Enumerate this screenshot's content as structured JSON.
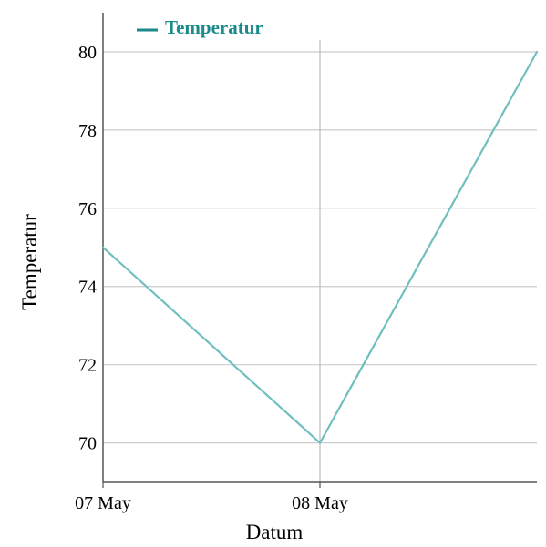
{
  "chart_data": {
    "type": "line",
    "title": "",
    "xlabel": "Datum",
    "ylabel": "Temperatur",
    "x": [
      "2024-05-07",
      "2024-05-08",
      "2024-05-09"
    ],
    "x_tick_labels": [
      "07 May",
      "08 May"
    ],
    "x_tick_values": [
      "2024-05-07",
      "2024-05-08"
    ],
    "y_ticks": [
      70,
      72,
      74,
      76,
      78,
      80
    ],
    "ylim": [
      68.99,
      81.0
    ],
    "grid": {
      "horizontal": true,
      "vertical": true
    },
    "legend_position": "top-left",
    "series": [
      {
        "name": "Temperatur",
        "values": [
          75,
          70,
          80
        ],
        "color": "#6fbfbf",
        "legend_color": "#1a8a8a"
      }
    ]
  },
  "colors": {
    "axis": "#555555",
    "grid": "#cccccc",
    "vertical_grid": "#bbbbbb"
  }
}
